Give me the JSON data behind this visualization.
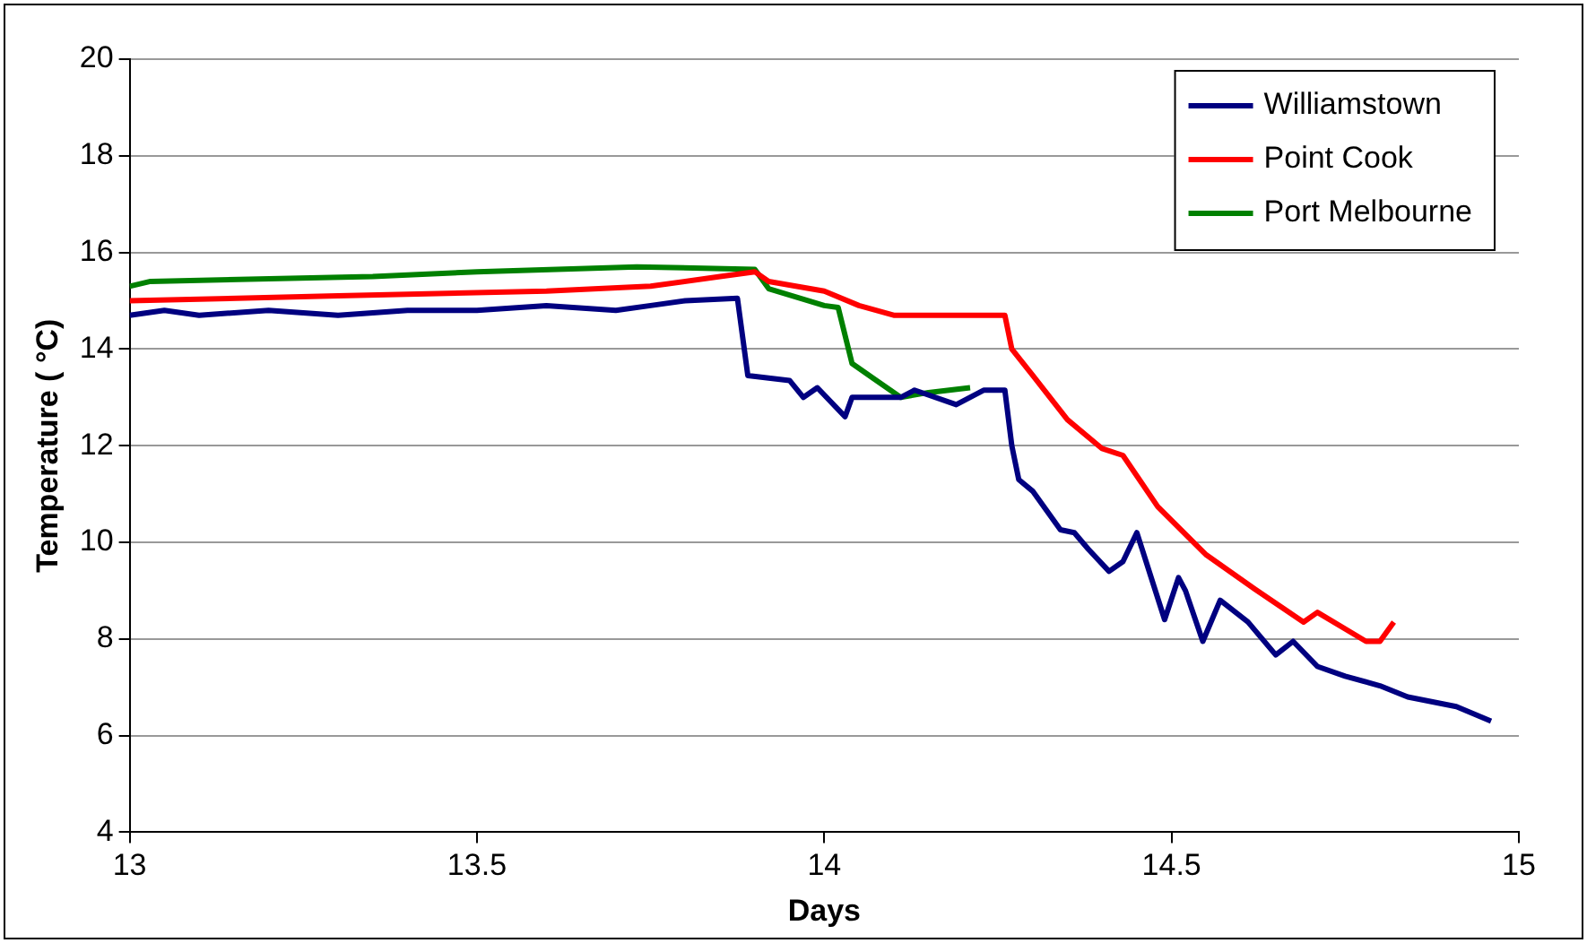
{
  "chart_data": {
    "type": "line",
    "xlabel": "Days",
    "ylabel": "Temperature ( °C)",
    "xlim": [
      13,
      15
    ],
    "xticks": [
      13,
      13.5,
      14,
      14.5,
      15
    ],
    "ylim": [
      4,
      20
    ],
    "yticks": [
      4,
      6,
      8,
      10,
      12,
      14,
      16,
      18,
      20
    ],
    "grid": "y",
    "legend": "top right",
    "marker": "none",
    "line_style": "solid",
    "series": [
      {
        "name": "Williamstown",
        "color": "#000080",
        "x": [
          13,
          13.05,
          13.1,
          13.2,
          13.3,
          13.4,
          13.5,
          13.6,
          13.7,
          13.75,
          13.8,
          13.875,
          13.89,
          13.95,
          13.97,
          13.99,
          14.03,
          14.04,
          14.09,
          14.11,
          14.13,
          14.19,
          14.23,
          14.26,
          14.27,
          14.28,
          14.3,
          14.34,
          14.36,
          14.38,
          14.41,
          14.43,
          14.45,
          14.47,
          14.49,
          14.51,
          14.52,
          14.545,
          14.57,
          14.61,
          14.65,
          14.675,
          14.71,
          14.75,
          14.8,
          14.84,
          14.91,
          14.96
        ],
        "values": [
          14.7,
          14.8,
          14.7,
          14.8,
          14.7,
          14.8,
          14.8,
          14.9,
          14.8,
          14.9,
          15.0,
          15.05,
          13.45,
          13.35,
          13.0,
          13.2,
          12.6,
          13.0,
          13.0,
          13.0,
          13.15,
          12.85,
          13.15,
          13.15,
          12.0,
          11.3,
          11.06,
          10.26,
          10.2,
          9.86,
          9.4,
          9.6,
          10.2,
          9.3,
          8.4,
          9.27,
          9.0,
          7.95,
          8.8,
          8.35,
          7.67,
          7.95,
          7.43,
          7.23,
          7.03,
          6.8,
          6.6,
          6.3
        ]
      },
      {
        "name": "Point Cook",
        "color": "#ff0000",
        "x": [
          13,
          13.3,
          13.6,
          13.75,
          13.85,
          13.9,
          13.92,
          14.0,
          14.05,
          14.1,
          14.26,
          14.27,
          14.3,
          14.35,
          14.4,
          14.43,
          14.48,
          14.55,
          14.62,
          14.69,
          14.71,
          14.78,
          14.8,
          14.82
        ],
        "values": [
          15.0,
          15.1,
          15.2,
          15.3,
          15.5,
          15.6,
          15.4,
          15.2,
          14.9,
          14.7,
          14.7,
          14.0,
          13.46,
          12.54,
          11.94,
          11.8,
          10.74,
          9.74,
          9.03,
          8.35,
          8.55,
          7.95,
          7.95,
          8.35
        ]
      },
      {
        "name": "Port Melbourne",
        "color": "#008000",
        "x": [
          13,
          13.03,
          13.35,
          13.5,
          13.73,
          13.9,
          13.92,
          14.0,
          14.02,
          14.04,
          14.07,
          14.11,
          14.15,
          14.21
        ],
        "values": [
          15.3,
          15.4,
          15.5,
          15.6,
          15.7,
          15.65,
          15.25,
          14.9,
          14.86,
          13.7,
          13.4,
          13.0,
          13.1,
          13.2
        ]
      }
    ]
  }
}
